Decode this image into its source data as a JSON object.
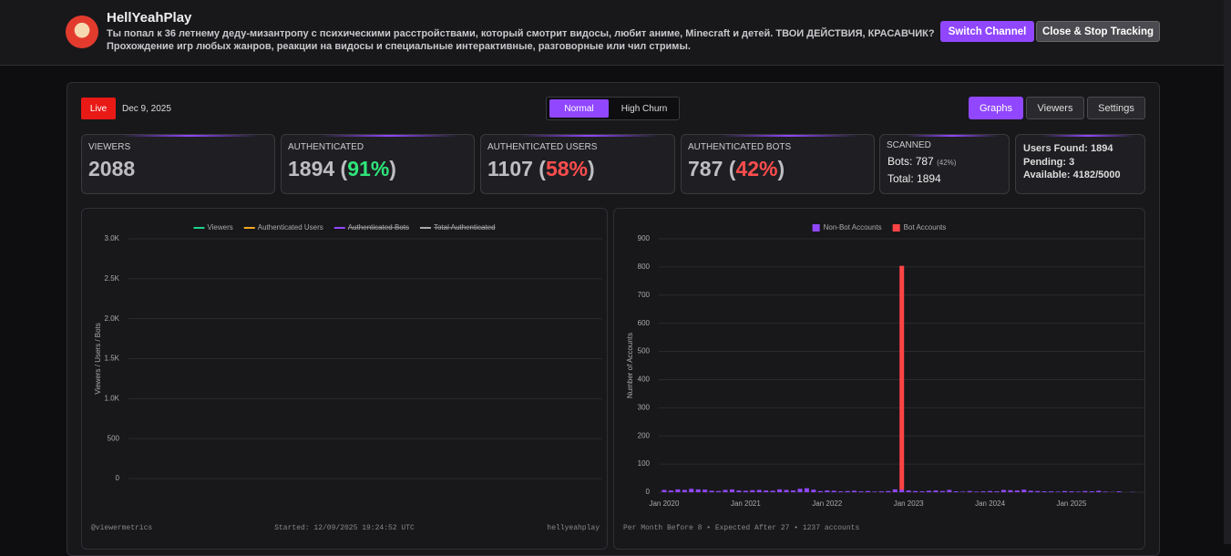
{
  "header": {
    "channel_name": "HellYeahPlay",
    "description": [
      "Ты попал к 36 летнему деду-мизантропу с психическими расстройствами, который смотрит видосы, любит аниме, Minecraft и детей. ТВОИ ДЕЙСТВИЯ, КРАСАВЧИК?",
      "Прохождение игр любых жанров, реакции на видосы и специальные интерактивные, разговорные или чил стримы."
    ],
    "buttons": [
      "Switch Channel",
      "Close & Stop Tracking"
    ]
  },
  "toolbar": {
    "status": "Live",
    "date": "Dec 9, 2025",
    "modes": [
      "Normal",
      "High Churn"
    ],
    "tabs": [
      "Graphs",
      "Viewers",
      "Settings"
    ]
  },
  "stats": [
    {
      "label": "VIEWERS",
      "value": "2088"
    },
    {
      "label": "AUTHENTICATED",
      "value": "1894",
      "percent": "91%"
    },
    {
      "label": "AUTHENTICATED USERS",
      "value": "1107",
      "percent": "58%"
    },
    {
      "label": "AUTHENTICATED BOTS",
      "value": "787",
      "percent": "42%"
    }
  ],
  "scanned": {
    "label": "SCANNED",
    "bots_label": "Bots:",
    "bots": "787",
    "bots_percent": "(42%)",
    "total_label": "Total:",
    "total": "1894"
  },
  "summary": [
    {
      "label": "Users Found:",
      "value": "1894"
    },
    {
      "label": "Pending:",
      "value": "3"
    },
    {
      "label": "Available:",
      "value": "4182/5000"
    }
  ],
  "chart_data": [
    {
      "type": "line",
      "y_label": "Viewers / Users / Bots",
      "x": [],
      "series": [
        {
          "name": "Viewers",
          "color": "#1fd18e",
          "values": [],
          "hidden": false
        },
        {
          "name": "Authenticated Users",
          "color": "#f5a623",
          "values": [],
          "hidden": false
        },
        {
          "name": "Authenticated Bots",
          "color": "#9147ff",
          "values": [],
          "hidden": true
        },
        {
          "name": "Total Authenticated",
          "color": "#aaaaaa",
          "values": [],
          "hidden": true
        }
      ],
      "ylim": [
        0,
        3000
      ],
      "yticks": [
        0,
        500,
        {
          "value": 1000,
          "label": "1.0K"
        },
        {
          "value": 1500,
          "label": "1.5K"
        },
        {
          "value": 2000,
          "label": "2.0K"
        },
        {
          "value": 2500,
          "label": "2.5K"
        },
        {
          "value": 3000,
          "label": "3.0K"
        }
      ],
      "grid": true,
      "footer": [
        "@viewermetrics",
        "Started: 12/09/2025 19:24:52 UTC",
        "hellyeahplay"
      ]
    },
    {
      "type": "bar",
      "y_label": "Number of Accounts",
      "x": [
        "2020-01",
        "2020-02",
        "2020-03",
        "2020-04",
        "2020-05",
        "2020-06",
        "2020-07",
        "2020-08",
        "2020-09",
        "2020-10",
        "2020-11",
        "2020-12",
        "2021-01",
        "2021-02",
        "2021-03",
        "2021-04",
        "2021-05",
        "2021-06",
        "2021-07",
        "2021-08",
        "2021-09",
        "2021-10",
        "2021-11",
        "2021-12",
        "2022-01",
        "2022-02",
        "2022-03",
        "2022-04",
        "2022-05",
        "2022-06",
        "2022-07",
        "2022-08",
        "2022-09",
        "2022-10",
        "2022-11",
        "2022-12",
        "2023-01",
        "2023-02",
        "2023-03",
        "2023-04",
        "2023-05",
        "2023-06",
        "2023-07",
        "2023-08",
        "2023-09",
        "2023-10",
        "2023-11",
        "2023-12",
        "2024-01",
        "2024-02",
        "2024-03",
        "2024-04",
        "2024-05",
        "2024-06",
        "2024-07",
        "2024-08",
        "2024-09",
        "2024-10",
        "2024-11",
        "2024-12",
        "2025-01",
        "2025-02",
        "2025-03",
        "2025-04",
        "2025-05",
        "2025-06",
        "2025-07",
        "2025-08",
        "2025-09",
        "2025-10"
      ],
      "series": [
        {
          "name": "Non-Bot Accounts",
          "color": "#9147ff",
          "values": [
            8,
            6,
            10,
            8,
            12,
            10,
            9,
            5,
            4,
            8,
            10,
            6,
            5,
            7,
            8,
            6,
            5,
            10,
            8,
            6,
            12,
            14,
            9,
            4,
            6,
            5,
            3,
            4,
            5,
            3,
            4,
            2,
            3,
            4,
            10,
            9,
            6,
            4,
            3,
            5,
            6,
            4,
            8,
            3,
            2,
            4,
            2,
            3,
            4,
            3,
            8,
            7,
            6,
            9,
            5,
            4,
            3,
            3,
            2,
            4,
            3,
            2,
            4,
            3,
            5,
            2,
            1,
            3,
            0,
            1
          ]
        },
        {
          "name": "Bot Accounts",
          "color": "#ff4444",
          "values": [
            0,
            0,
            0,
            0,
            0,
            0,
            0,
            0,
            0,
            0,
            0,
            0,
            0,
            0,
            0,
            0,
            0,
            0,
            0,
            0,
            0,
            0,
            0,
            0,
            0,
            0,
            0,
            0,
            0,
            0,
            0,
            0,
            0,
            0,
            0,
            795,
            0,
            0,
            0,
            0,
            0,
            0,
            0,
            0,
            0,
            0,
            0,
            0,
            0,
            0,
            0,
            0,
            0,
            0,
            0,
            0,
            0,
            0,
            0,
            0,
            0,
            0,
            0,
            0,
            0,
            0,
            0,
            0,
            0,
            0
          ]
        }
      ],
      "ylim": [
        0,
        900
      ],
      "yticks": [
        0,
        100,
        200,
        300,
        400,
        500,
        600,
        700,
        800,
        900
      ],
      "xticks": [
        {
          "value": "2020-01",
          "label": "Jan 2020"
        },
        {
          "value": "2021-01",
          "label": "Jan 2021"
        },
        {
          "value": "2022-01",
          "label": "Jan 2022"
        },
        {
          "value": "2023-01",
          "label": "Jan 2023"
        },
        {
          "value": "2024-01",
          "label": "Jan 2024"
        },
        {
          "value": "2025-01",
          "label": "Jan 2025"
        }
      ],
      "grid": true,
      "footer": [
        "Per Month Before 8 • Expected After 27 • 1237 accounts"
      ]
    }
  ]
}
